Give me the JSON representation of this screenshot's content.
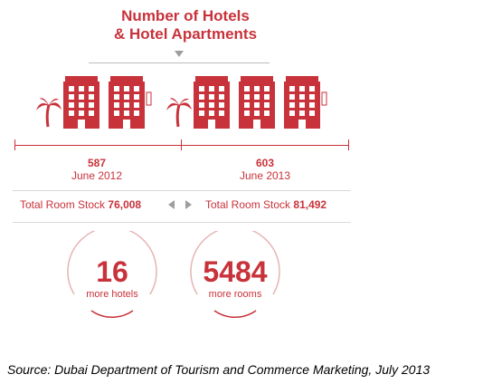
{
  "title_line1": "Number of Hotels",
  "title_line2": "& Hotel Apartments",
  "accent_color": "#c8323a",
  "chart_data": {
    "type": "pictogram",
    "periods": [
      {
        "count": "587",
        "date": "June 2012",
        "stock_label": "Total Room Stock",
        "stock_value": "76,008",
        "hotel_icons": 2
      },
      {
        "count": "603",
        "date": "June 2013",
        "stock_label": "Total Room Stock",
        "stock_value": "81,492",
        "hotel_icons": 3
      }
    ],
    "highlights": [
      {
        "value": "16",
        "label": "more hotels"
      },
      {
        "value": "5484",
        "label": "more rooms"
      }
    ]
  },
  "icons": [
    "palm-tree-icon",
    "hotel-building-icon"
  ],
  "source": "Source: Dubai Department of Tourism and Commerce Marketing, July 2013"
}
